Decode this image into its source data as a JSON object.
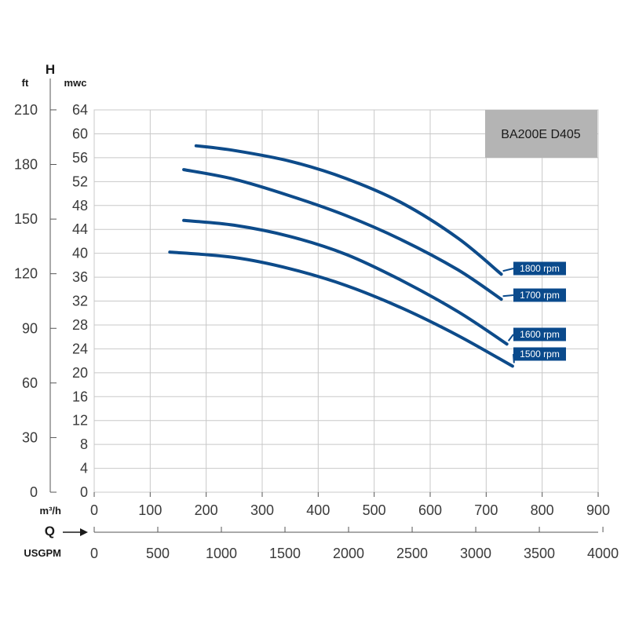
{
  "chart_data": {
    "type": "line",
    "title": "",
    "model_label": "BA200E D405",
    "y_symbol": "H",
    "x_symbol": "Q",
    "y_units": {
      "left": "ft",
      "right": "mwc"
    },
    "x_units": {
      "top": "m³/h",
      "bottom": "USGPM"
    },
    "y_ticks_mwc": [
      "0",
      "4",
      "8",
      "12",
      "16",
      "20",
      "24",
      "28",
      "32",
      "36",
      "40",
      "44",
      "48",
      "52",
      "56",
      "60",
      "64"
    ],
    "y_ticks_ft": [
      "0",
      "30",
      "60",
      "90",
      "120",
      "150",
      "180",
      "210"
    ],
    "x_ticks_m3h": [
      "0",
      "100",
      "200",
      "300",
      "400",
      "500",
      "600",
      "700",
      "800",
      "900"
    ],
    "x_ticks_usgpm": [
      "0",
      "500",
      "1000",
      "1500",
      "2000",
      "2500",
      "3000",
      "3500",
      "4000"
    ],
    "xlim_m3h": [
      0,
      900
    ],
    "ylim_mwc": [
      0,
      64
    ],
    "grid": true,
    "series": [
      {
        "name": "1800 rpm",
        "x": [
          182,
          250,
          350,
          450,
          550,
          650,
          727
        ],
        "y": [
          58,
          57.2,
          55.4,
          52.5,
          48.4,
          42.5,
          36.5
        ]
      },
      {
        "name": "1700 rpm",
        "x": [
          160,
          250,
          350,
          450,
          550,
          650,
          727
        ],
        "y": [
          54,
          52.4,
          49.6,
          46.3,
          42.2,
          37.2,
          32.3
        ]
      },
      {
        "name": "1600 rpm",
        "x": [
          160,
          250,
          350,
          450,
          550,
          650,
          737
        ],
        "y": [
          45.5,
          44.7,
          42.8,
          39.8,
          35.4,
          30.2,
          24.8
        ]
      },
      {
        "name": "1500 rpm",
        "x": [
          135,
          250,
          350,
          450,
          550,
          650,
          747
        ],
        "y": [
          40.2,
          39.3,
          37.4,
          34.6,
          30.8,
          26.2,
          21.1
        ]
      }
    ],
    "colors": {
      "curve": "#0d4b8a",
      "label_bg": "#0a4a8c",
      "model_bg": "#b4b4b4",
      "grid": "#c8c8c8"
    }
  }
}
